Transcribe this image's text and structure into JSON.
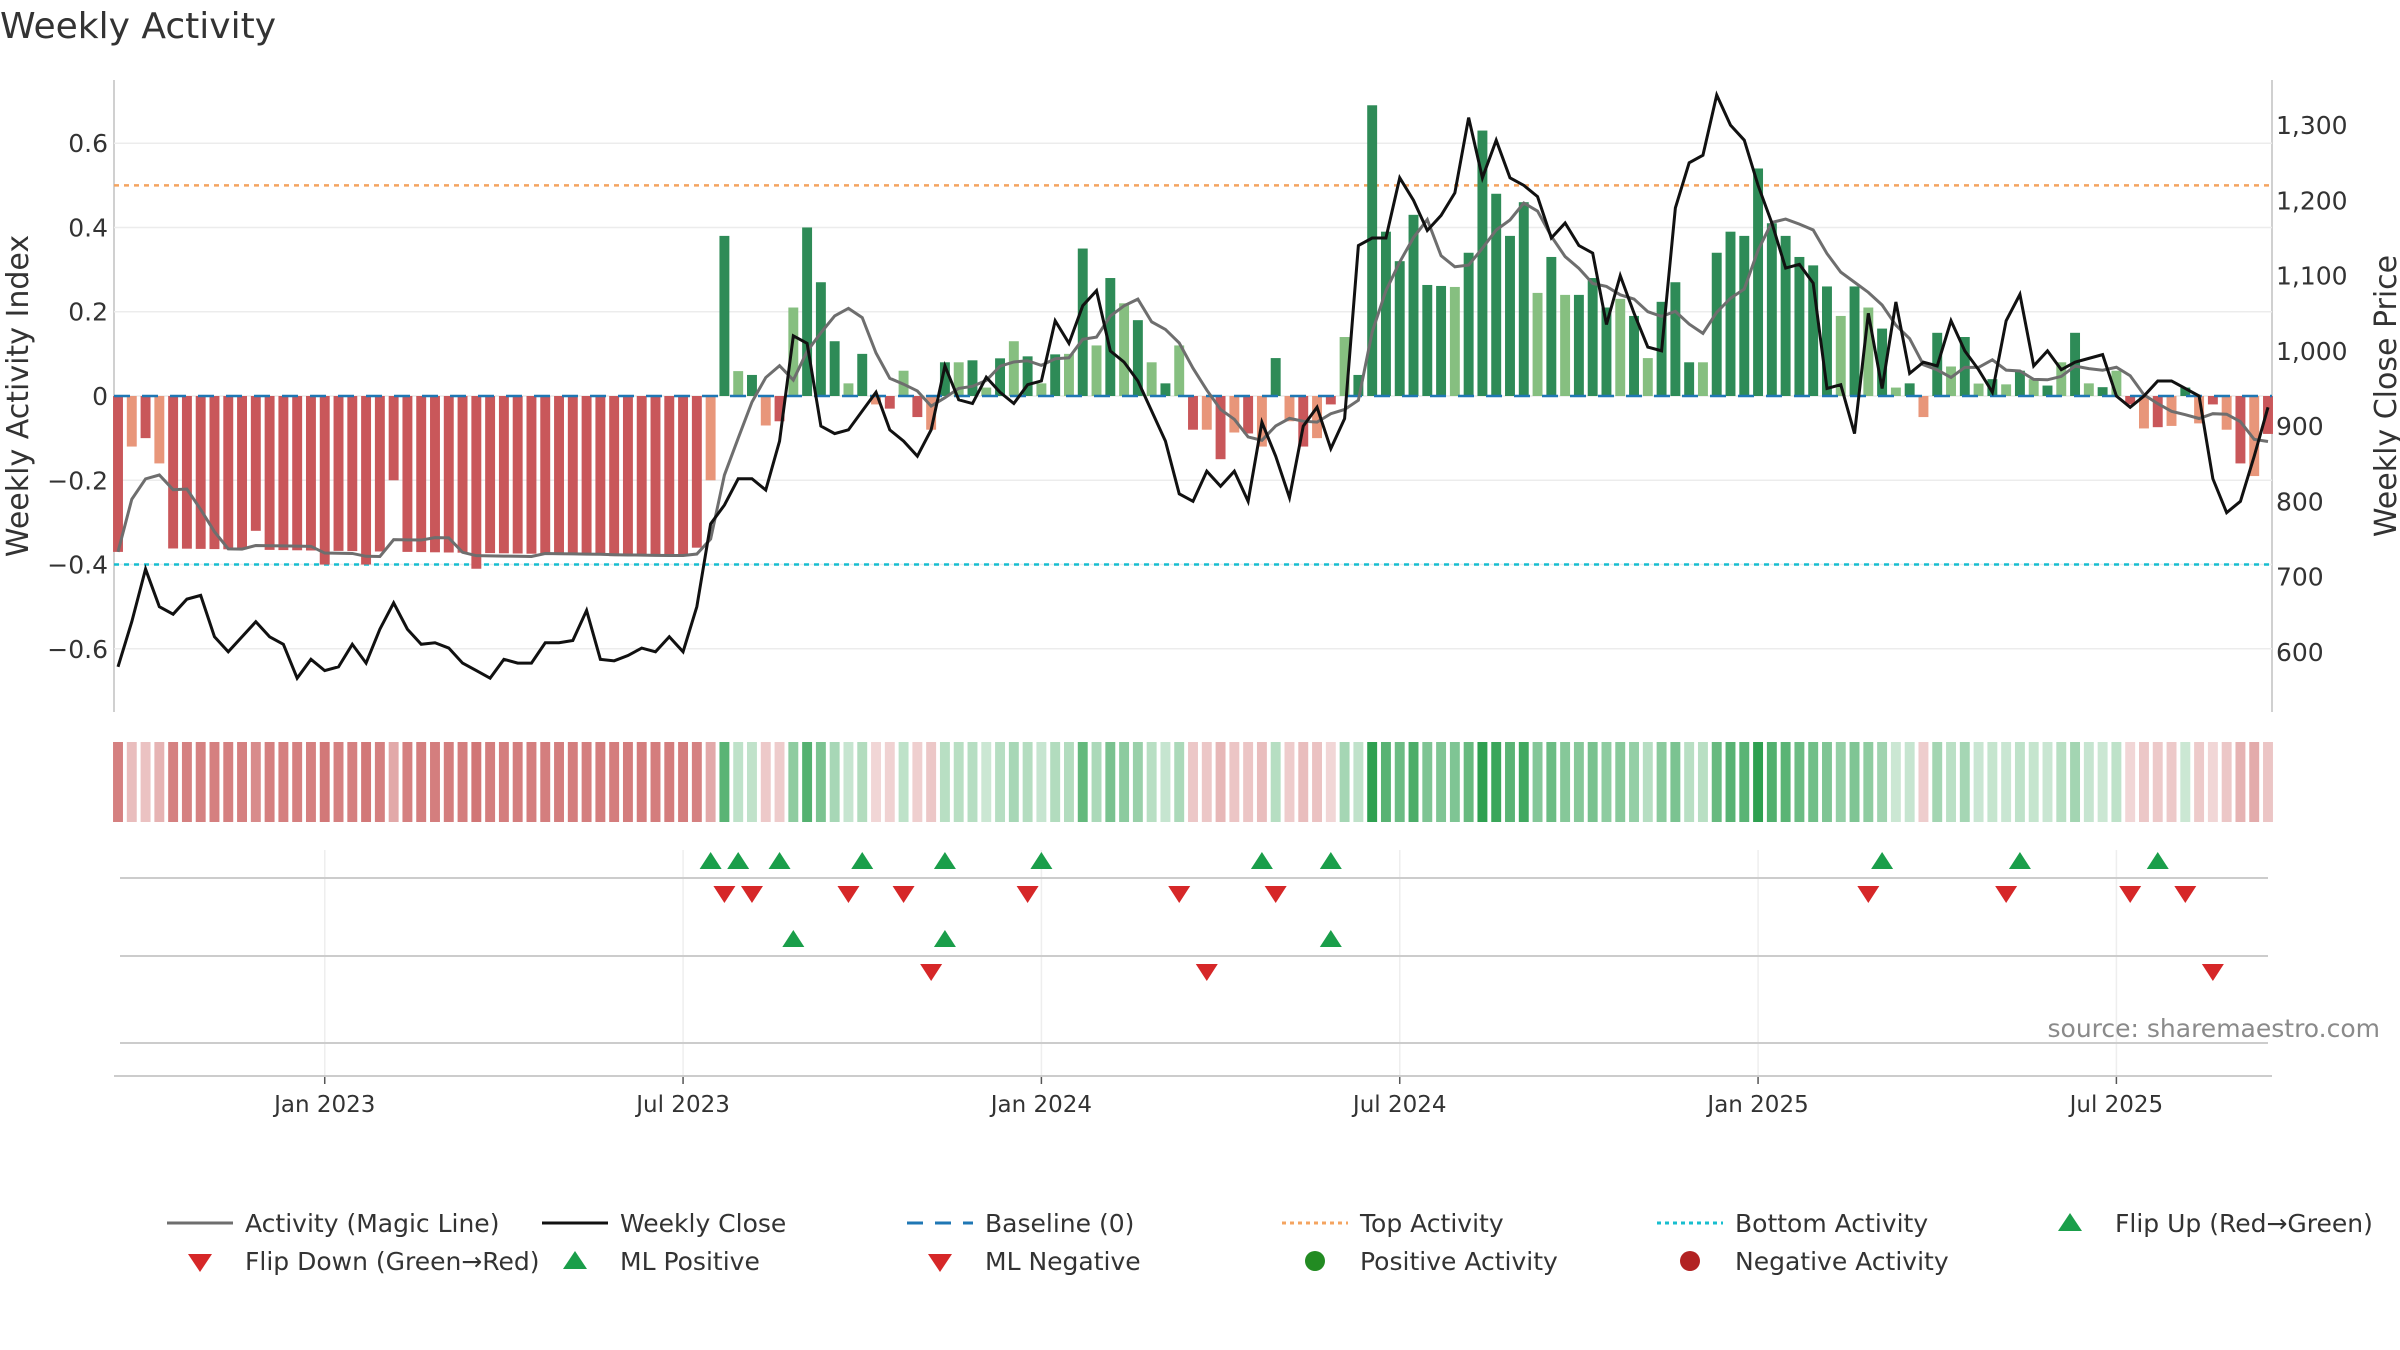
{
  "title": "Weekly Activity",
  "source_note": "source: sharemaestro.com",
  "colors": {
    "dark_green": "#2e8b57",
    "light_green": "#86bf80",
    "dark_red": "#c9575a",
    "light_red": "#e8967a",
    "magic_line": "#6e6e6e",
    "close_line": "#111111",
    "baseline": "#1f77b4",
    "top_line": "#f4a460",
    "bottom_line": "#17becf",
    "flip_up": "#1a9e4a",
    "flip_down": "#d62728"
  },
  "legend": [
    {
      "key": "magic",
      "label": "Activity (Magic Line)"
    },
    {
      "key": "close",
      "label": "Weekly Close"
    },
    {
      "key": "baseline",
      "label": "Baseline (0)"
    },
    {
      "key": "top",
      "label": "Top Activity"
    },
    {
      "key": "bottom",
      "label": "Bottom Activity"
    },
    {
      "key": "flipup",
      "label": "Flip Up (Red→Green)"
    },
    {
      "key": "flipdown",
      "label": "Flip Down (Green→Red)"
    },
    {
      "key": "mlpos",
      "label": "ML Positive"
    },
    {
      "key": "mlneg",
      "label": "ML Negative"
    },
    {
      "key": "pos",
      "label": "Positive Activity"
    },
    {
      "key": "neg",
      "label": "Negative Activity"
    }
  ],
  "chart_data": {
    "type": "bar",
    "title": "Weekly Activity",
    "ylabel": "Weekly Activity Index",
    "y2label": "Weekly Close Price",
    "ylim": [
      -0.75,
      0.75
    ],
    "y2lim": [
      520,
      1360
    ],
    "yticks": [
      {
        "v": 0.6,
        "label": "0.6"
      },
      {
        "v": 0.4,
        "label": "0.4"
      },
      {
        "v": 0.2,
        "label": "0.2"
      },
      {
        "v": 0,
        "label": "0"
      },
      {
        "v": -0.2,
        "label": "−0.2"
      },
      {
        "v": -0.4,
        "label": "−0.4"
      },
      {
        "v": -0.6,
        "label": "−0.6"
      }
    ],
    "y2ticks": [
      {
        "v": 1300,
        "label": "1,300"
      },
      {
        "v": 1200,
        "label": "1,200"
      },
      {
        "v": 1100,
        "label": "1,100"
      },
      {
        "v": 1000,
        "label": "1,000"
      },
      {
        "v": 900,
        "label": "900"
      },
      {
        "v": 800,
        "label": "800"
      },
      {
        "v": 700,
        "label": "700"
      },
      {
        "v": 600,
        "label": "600"
      }
    ],
    "xticks": [
      {
        "week": 15,
        "label": "Jan 2023"
      },
      {
        "week": 41,
        "label": "Jul 2023"
      },
      {
        "week": 67,
        "label": "Jan 2024"
      },
      {
        "week": 93,
        "label": "Jul 2024"
      },
      {
        "week": 119,
        "label": "Jan 2025"
      },
      {
        "week": 145,
        "label": "Jul 2025"
      }
    ],
    "top_activity": 0.5,
    "bottom_activity": -0.4,
    "baseline": 0,
    "weeks": 157,
    "segments": [
      {
        "from": 0,
        "to": 42,
        "a0": -0.36,
        "a1": -0.38,
        "c0": 590,
        "c1": 600
      },
      {
        "from": 43,
        "to": 54,
        "a0": 0.05,
        "a1": 0.1,
        "c0": 820,
        "c1": 940
      },
      {
        "from": 55,
        "to": 59,
        "a0": -0.02,
        "a1": -0.06,
        "c0": 920,
        "c1": 880
      },
      {
        "from": 60,
        "to": 77,
        "a0": 0.08,
        "a1": 0.12,
        "c0": 930,
        "c1": 1040
      },
      {
        "from": 78,
        "to": 87,
        "a0": -0.08,
        "a1": -0.1,
        "c0": 900,
        "c1": 840
      },
      {
        "from": 88,
        "to": 122,
        "a0": 0.28,
        "a1": 0.2,
        "c0": 1150,
        "c1": 1100
      },
      {
        "from": 123,
        "to": 123,
        "a0": -0.05,
        "a1": -0.05,
        "c0": 890,
        "c1": 890
      },
      {
        "from": 124,
        "to": 145,
        "a0": 0.04,
        "a1": 0.02,
        "c0": 980,
        "c1": 960
      },
      {
        "from": 146,
        "to": 156,
        "a0": -0.08,
        "a1": -0.05,
        "c0": 810,
        "c1": 900
      }
    ],
    "bar_overrides": [
      {
        "week": 0,
        "value": -0.37
      },
      {
        "week": 1,
        "value": -0.12
      },
      {
        "week": 2,
        "value": -0.1
      },
      {
        "week": 3,
        "value": -0.16
      },
      {
        "week": 10,
        "value": -0.32
      },
      {
        "week": 15,
        "value": -0.4
      },
      {
        "week": 18,
        "value": -0.4
      },
      {
        "week": 20,
        "value": -0.2
      },
      {
        "week": 26,
        "value": -0.41
      },
      {
        "week": 36,
        "value": -0.38
      },
      {
        "week": 42,
        "value": -0.36
      },
      {
        "week": 43,
        "value": -0.2
      },
      {
        "week": 44,
        "value": 0.38
      },
      {
        "week": 46,
        "value": 0.05
      },
      {
        "week": 47,
        "value": -0.07
      },
      {
        "week": 48,
        "value": -0.06
      },
      {
        "week": 49,
        "value": 0.21
      },
      {
        "week": 50,
        "value": 0.4
      },
      {
        "week": 51,
        "value": 0.27
      },
      {
        "week": 52,
        "value": 0.13
      },
      {
        "week": 53,
        "value": 0.03
      },
      {
        "week": 57,
        "value": 0.06
      },
      {
        "week": 59,
        "value": -0.08
      },
      {
        "week": 61,
        "value": 0.08
      },
      {
        "week": 63,
        "value": 0.02
      },
      {
        "week": 65,
        "value": 0.13
      },
      {
        "week": 67,
        "value": 0.03
      },
      {
        "week": 69,
        "value": 0.1
      },
      {
        "week": 70,
        "value": 0.35
      },
      {
        "week": 71,
        "value": 0.12
      },
      {
        "week": 72,
        "value": 0.28
      },
      {
        "week": 73,
        "value": 0.22
      },
      {
        "week": 74,
        "value": 0.18
      },
      {
        "week": 75,
        "value": 0.08
      },
      {
        "week": 76,
        "value": 0.03
      },
      {
        "week": 79,
        "value": -0.08
      },
      {
        "week": 80,
        "value": -0.15
      },
      {
        "week": 83,
        "value": -0.12
      },
      {
        "week": 84,
        "value": 0.09
      },
      {
        "week": 85,
        "value": -0.06
      },
      {
        "week": 86,
        "value": -0.12
      },
      {
        "week": 88,
        "value": -0.02
      },
      {
        "week": 89,
        "value": 0.14
      },
      {
        "week": 90,
        "value": 0.05
      },
      {
        "week": 91,
        "value": 0.69
      },
      {
        "week": 92,
        "value": 0.39
      },
      {
        "week": 93,
        "value": 0.32
      },
      {
        "week": 94,
        "value": 0.43
      },
      {
        "week": 98,
        "value": 0.34
      },
      {
        "week": 99,
        "value": 0.63
      },
      {
        "week": 100,
        "value": 0.48
      },
      {
        "week": 101,
        "value": 0.38
      },
      {
        "week": 102,
        "value": 0.46
      },
      {
        "week": 104,
        "value": 0.33
      },
      {
        "week": 106,
        "value": 0.24
      },
      {
        "week": 107,
        "value": 0.28
      },
      {
        "week": 108,
        "value": 0.21
      },
      {
        "week": 110,
        "value": 0.19
      },
      {
        "week": 111,
        "value": 0.09
      },
      {
        "week": 113,
        "value": 0.27
      },
      {
        "week": 114,
        "value": 0.08
      },
      {
        "week": 115,
        "value": 0.08
      },
      {
        "week": 116,
        "value": 0.34
      },
      {
        "week": 117,
        "value": 0.39
      },
      {
        "week": 118,
        "value": 0.38
      },
      {
        "week": 119,
        "value": 0.54
      },
      {
        "week": 120,
        "value": 0.41
      },
      {
        "week": 121,
        "value": 0.38
      },
      {
        "week": 122,
        "value": 0.33
      },
      {
        "week": 123,
        "value": 0.31
      },
      {
        "week": 124,
        "value": 0.26
      },
      {
        "week": 125,
        "value": 0.19
      },
      {
        "week": 126,
        "value": 0.26
      },
      {
        "week": 127,
        "value": 0.21
      },
      {
        "week": 128,
        "value": 0.16
      },
      {
        "week": 129,
        "value": 0.02
      },
      {
        "week": 130,
        "value": 0.03
      },
      {
        "week": 131,
        "value": -0.05
      },
      {
        "week": 132,
        "value": 0.15
      },
      {
        "week": 133,
        "value": 0.07
      },
      {
        "week": 134,
        "value": 0.14
      },
      {
        "week": 136,
        "value": 0.04
      },
      {
        "week": 138,
        "value": 0.06
      },
      {
        "week": 139,
        "value": 0.04
      },
      {
        "week": 141,
        "value": 0.08
      },
      {
        "week": 142,
        "value": 0.15
      },
      {
        "week": 143,
        "value": 0.03
      },
      {
        "week": 145,
        "value": 0.06
      },
      {
        "week": 146,
        "value": -0.02
      },
      {
        "week": 150,
        "value": 0.02
      },
      {
        "week": 152,
        "value": -0.02
      },
      {
        "week": 153,
        "value": -0.08
      },
      {
        "week": 154,
        "value": -0.16
      },
      {
        "week": 155,
        "value": -0.19
      },
      {
        "week": 156,
        "value": -0.09
      }
    ],
    "close_overrides": [
      {
        "week": 0,
        "value": 580
      },
      {
        "week": 1,
        "value": 640
      },
      {
        "week": 2,
        "value": 710
      },
      {
        "week": 3,
        "value": 660
      },
      {
        "week": 4,
        "value": 650
      },
      {
        "week": 5,
        "value": 670
      },
      {
        "week": 6,
        "value": 675
      },
      {
        "week": 7,
        "value": 620
      },
      {
        "week": 8,
        "value": 600
      },
      {
        "week": 9,
        "value": 620
      },
      {
        "week": 10,
        "value": 640
      },
      {
        "week": 11,
        "value": 620
      },
      {
        "week": 12,
        "value": 610
      },
      {
        "week": 13,
        "value": 565
      },
      {
        "week": 14,
        "value": 590
      },
      {
        "week": 15,
        "value": 575
      },
      {
        "week": 16,
        "value": 580
      },
      {
        "week": 17,
        "value": 610
      },
      {
        "week": 18,
        "value": 585
      },
      {
        "week": 19,
        "value": 630
      },
      {
        "week": 20,
        "value": 665
      },
      {
        "week": 21,
        "value": 630
      },
      {
        "week": 22,
        "value": 610
      },
      {
        "week": 23,
        "value": 612
      },
      {
        "week": 24,
        "value": 605
      },
      {
        "week": 25,
        "value": 585
      },
      {
        "week": 26,
        "value": 575
      },
      {
        "week": 27,
        "value": 565
      },
      {
        "week": 28,
        "value": 590
      },
      {
        "week": 29,
        "value": 585
      },
      {
        "week": 30,
        "value": 585
      },
      {
        "week": 31,
        "value": 612
      },
      {
        "week": 32,
        "value": 612
      },
      {
        "week": 33,
        "value": 615
      },
      {
        "week": 34,
        "value": 655
      },
      {
        "week": 35,
        "value": 590
      },
      {
        "week": 36,
        "value": 588
      },
      {
        "week": 37,
        "value": 595
      },
      {
        "week": 38,
        "value": 605
      },
      {
        "week": 39,
        "value": 600
      },
      {
        "week": 40,
        "value": 620
      },
      {
        "week": 41,
        "value": 600
      },
      {
        "week": 42,
        "value": 660
      },
      {
        "week": 43,
        "value": 770
      },
      {
        "week": 44,
        "value": 795
      },
      {
        "week": 45,
        "value": 830
      },
      {
        "week": 46,
        "value": 830
      },
      {
        "week": 47,
        "value": 815
      },
      {
        "week": 48,
        "value": 880
      },
      {
        "week": 49,
        "value": 1020
      },
      {
        "week": 50,
        "value": 1010
      },
      {
        "week": 51,
        "value": 900
      },
      {
        "week": 52,
        "value": 890
      },
      {
        "week": 53,
        "value": 895
      },
      {
        "week": 54,
        "value": 920
      },
      {
        "week": 55,
        "value": 945
      },
      {
        "week": 56,
        "value": 895
      },
      {
        "week": 57,
        "value": 880
      },
      {
        "week": 58,
        "value": 860
      },
      {
        "week": 59,
        "value": 895
      },
      {
        "week": 60,
        "value": 980
      },
      {
        "week": 61,
        "value": 935
      },
      {
        "week": 62,
        "value": 930
      },
      {
        "week": 63,
        "value": 965
      },
      {
        "week": 64,
        "value": 945
      },
      {
        "week": 65,
        "value": 930
      },
      {
        "week": 66,
        "value": 955
      },
      {
        "week": 67,
        "value": 960
      },
      {
        "week": 68,
        "value": 1040
      },
      {
        "week": 69,
        "value": 1010
      },
      {
        "week": 70,
        "value": 1060
      },
      {
        "week": 71,
        "value": 1080
      },
      {
        "week": 72,
        "value": 1000
      },
      {
        "week": 73,
        "value": 985
      },
      {
        "week": 74,
        "value": 960
      },
      {
        "week": 75,
        "value": 920
      },
      {
        "week": 76,
        "value": 880
      },
      {
        "week": 77,
        "value": 810
      },
      {
        "week": 78,
        "value": 800
      },
      {
        "week": 79,
        "value": 840
      },
      {
        "week": 80,
        "value": 820
      },
      {
        "week": 81,
        "value": 840
      },
      {
        "week": 82,
        "value": 800
      },
      {
        "week": 83,
        "value": 905
      },
      {
        "week": 84,
        "value": 860
      },
      {
        "week": 85,
        "value": 805
      },
      {
        "week": 86,
        "value": 900
      },
      {
        "week": 87,
        "value": 925
      },
      {
        "week": 88,
        "value": 870
      },
      {
        "week": 89,
        "value": 910
      },
      {
        "week": 90,
        "value": 1140
      },
      {
        "week": 91,
        "value": 1150
      },
      {
        "week": 92,
        "value": 1150
      },
      {
        "week": 93,
        "value": 1230
      },
      {
        "week": 94,
        "value": 1200
      },
      {
        "week": 95,
        "value": 1160
      },
      {
        "week": 96,
        "value": 1180
      },
      {
        "week": 97,
        "value": 1210
      },
      {
        "week": 98,
        "value": 1310
      },
      {
        "week": 99,
        "value": 1230
      },
      {
        "week": 100,
        "value": 1280
      },
      {
        "week": 101,
        "value": 1230
      },
      {
        "week": 102,
        "value": 1220
      },
      {
        "week": 103,
        "value": 1205
      },
      {
        "week": 104,
        "value": 1150
      },
      {
        "week": 105,
        "value": 1170
      },
      {
        "week": 106,
        "value": 1140
      },
      {
        "week": 107,
        "value": 1130
      },
      {
        "week": 108,
        "value": 1035
      },
      {
        "week": 109,
        "value": 1100
      },
      {
        "week": 110,
        "value": 1050
      },
      {
        "week": 111,
        "value": 1005
      },
      {
        "week": 112,
        "value": 1000
      },
      {
        "week": 113,
        "value": 1190
      },
      {
        "week": 114,
        "value": 1250
      },
      {
        "week": 115,
        "value": 1260
      },
      {
        "week": 116,
        "value": 1340
      },
      {
        "week": 117,
        "value": 1300
      },
      {
        "week": 118,
        "value": 1280
      },
      {
        "week": 119,
        "value": 1220
      },
      {
        "week": 120,
        "value": 1170
      },
      {
        "week": 121,
        "value": 1110
      },
      {
        "week": 122,
        "value": 1115
      },
      {
        "week": 123,
        "value": 1090
      },
      {
        "week": 124,
        "value": 950
      },
      {
        "week": 125,
        "value": 955
      },
      {
        "week": 126,
        "value": 890
      },
      {
        "week": 127,
        "value": 1050
      },
      {
        "week": 128,
        "value": 950
      },
      {
        "week": 129,
        "value": 1065
      },
      {
        "week": 130,
        "value": 970
      },
      {
        "week": 131,
        "value": 985
      },
      {
        "week": 132,
        "value": 980
      },
      {
        "week": 133,
        "value": 1040
      },
      {
        "week": 134,
        "value": 1000
      },
      {
        "week": 135,
        "value": 975
      },
      {
        "week": 136,
        "value": 945
      },
      {
        "week": 137,
        "value": 1040
      },
      {
        "week": 138,
        "value": 1075
      },
      {
        "week": 139,
        "value": 980
      },
      {
        "week": 140,
        "value": 1000
      },
      {
        "week": 141,
        "value": 975
      },
      {
        "week": 142,
        "value": 985
      },
      {
        "week": 143,
        "value": 990
      },
      {
        "week": 144,
        "value": 995
      },
      {
        "week": 145,
        "value": 940
      },
      {
        "week": 146,
        "value": 925
      },
      {
        "week": 147,
        "value": 940
      },
      {
        "week": 148,
        "value": 960
      },
      {
        "week": 149,
        "value": 960
      },
      {
        "week": 150,
        "value": 950
      },
      {
        "week": 151,
        "value": 940
      },
      {
        "week": 152,
        "value": 830
      },
      {
        "week": 153,
        "value": 785
      },
      {
        "week": 154,
        "value": 800
      },
      {
        "week": 155,
        "value": 860
      },
      {
        "week": 156,
        "value": 925
      }
    ],
    "markers": {
      "flip_up": [
        43,
        45,
        48,
        54,
        60,
        67,
        83,
        88,
        128,
        138,
        148
      ],
      "flip_down": [
        44,
        46,
        53,
        57,
        66,
        77,
        84,
        127,
        137,
        146,
        150
      ],
      "ml_positive": [
        49,
        60,
        88
      ],
      "ml_negative": [
        59,
        79,
        152
      ]
    }
  }
}
